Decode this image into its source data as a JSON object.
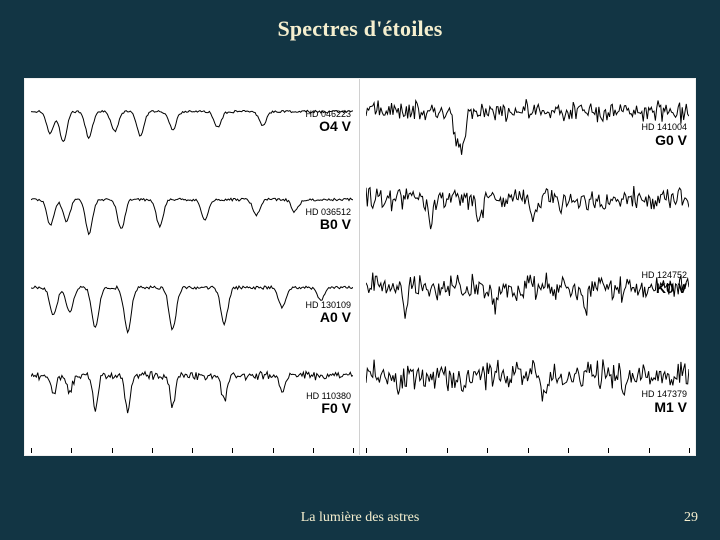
{
  "title": "Spectres d'étoiles",
  "footer": "La lumière des astres",
  "page_number": "29",
  "background_color": "#123544",
  "text_color": "#f5efcf",
  "chart": {
    "background": "#ffffff",
    "stroke": "#000000",
    "stroke_width": 1,
    "panel_border": "#d0d0d0",
    "tick_count": 9,
    "label_fontsize_hd": 9,
    "label_fontsize_class": 14,
    "panels": [
      {
        "name": "left",
        "rows": [
          {
            "hd": "HD 046223",
            "class": "O4 V",
            "label_top_pct": 28,
            "variant": "sparse",
            "seed": 11,
            "jitter": 1.2,
            "dips": [
              {
                "x": 0.06,
                "d": 22
              },
              {
                "x": 0.1,
                "d": 30
              },
              {
                "x": 0.18,
                "d": 26
              },
              {
                "x": 0.26,
                "d": 20
              },
              {
                "x": 0.34,
                "d": 24
              },
              {
                "x": 0.44,
                "d": 18
              },
              {
                "x": 0.58,
                "d": 16
              },
              {
                "x": 0.72,
                "d": 14
              }
            ]
          },
          {
            "hd": "HD 036512",
            "class": "B0 V",
            "label_top_pct": 40,
            "variant": "sparse",
            "seed": 22,
            "jitter": 1.4,
            "dips": [
              {
                "x": 0.06,
                "d": 26
              },
              {
                "x": 0.11,
                "d": 22
              },
              {
                "x": 0.18,
                "d": 34
              },
              {
                "x": 0.28,
                "d": 30
              },
              {
                "x": 0.4,
                "d": 26
              },
              {
                "x": 0.54,
                "d": 20
              },
              {
                "x": 0.7,
                "d": 16
              },
              {
                "x": 0.82,
                "d": 12
              }
            ]
          },
          {
            "hd": "HD 130109",
            "class": "A0 V",
            "label_top_pct": 46,
            "variant": "sparse",
            "seed": 33,
            "jitter": 1.6,
            "dips": [
              {
                "x": 0.07,
                "d": 28
              },
              {
                "x": 0.12,
                "d": 24
              },
              {
                "x": 0.2,
                "d": 40
              },
              {
                "x": 0.3,
                "d": 44
              },
              {
                "x": 0.44,
                "d": 42
              },
              {
                "x": 0.6,
                "d": 36
              },
              {
                "x": 0.78,
                "d": 20
              },
              {
                "x": 0.9,
                "d": 12
              }
            ]
          },
          {
            "hd": "HD 110380",
            "class": "F0 V",
            "label_top_pct": 50,
            "variant": "mixed",
            "seed": 44,
            "jitter": 3.2,
            "dips": [
              {
                "x": 0.07,
                "d": 20
              },
              {
                "x": 0.12,
                "d": 18
              },
              {
                "x": 0.2,
                "d": 34
              },
              {
                "x": 0.3,
                "d": 36
              },
              {
                "x": 0.44,
                "d": 32
              },
              {
                "x": 0.6,
                "d": 26
              },
              {
                "x": 0.78,
                "d": 16
              }
            ]
          }
        ]
      },
      {
        "name": "right",
        "rows": [
          {
            "hd": "HD 141004",
            "class": "G0 V",
            "label_top_pct": 44,
            "variant": "dense",
            "seed": 55,
            "jitter": 6.0,
            "dips": [
              {
                "x": 0.28,
                "d": 38
              },
              {
                "x": 0.3,
                "d": 34
              }
            ]
          },
          {
            "hd": "",
            "class": "",
            "label_top_pct": 44,
            "variant": "dense",
            "seed": 66,
            "jitter": 6.5,
            "dips": [
              {
                "x": 0.2,
                "d": 22
              },
              {
                "x": 0.35,
                "d": 18
              },
              {
                "x": 0.52,
                "d": 20
              }
            ]
          },
          {
            "hd": "HD 124752",
            "class": "K0 V",
            "label_top_pct": 10,
            "variant": "dense",
            "seed": 77,
            "jitter": 7.5,
            "dips": [
              {
                "x": 0.12,
                "d": 24
              },
              {
                "x": 0.4,
                "d": 20
              },
              {
                "x": 0.68,
                "d": 18
              }
            ]
          },
          {
            "hd": "HD 147379",
            "class": "M1 V",
            "label_top_pct": 48,
            "variant": "dense",
            "seed": 88,
            "jitter": 8.5,
            "dips": [
              {
                "x": 0.1,
                "d": 18
              },
              {
                "x": 0.3,
                "d": 16
              },
              {
                "x": 0.55,
                "d": 16
              },
              {
                "x": 0.8,
                "d": 14
              }
            ]
          }
        ]
      }
    ]
  }
}
